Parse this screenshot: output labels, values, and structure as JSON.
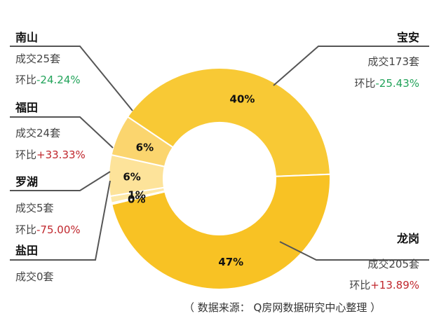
{
  "chart_data": {
    "type": "pie",
    "style": "donut",
    "slices": [
      {
        "label": "宝安",
        "value": 40,
        "display": "40%",
        "color": "#f8c935"
      },
      {
        "label": "龙岗",
        "value": 47,
        "display": "47%",
        "color": "#f8c224"
      },
      {
        "label": "盐田",
        "value": 0.2,
        "display": "0%",
        "color": "#fbe9b0"
      },
      {
        "label": "罗湖",
        "value": 1,
        "display": "1%",
        "color": "#fde8a8"
      },
      {
        "label": "福田",
        "value": 6,
        "display": "6%",
        "color": "#fde39a"
      },
      {
        "label": "南山",
        "value": 6,
        "display": "6%",
        "color": "#fbd56e"
      }
    ]
  },
  "districts": {
    "nanshan": {
      "name": "南山",
      "deal": "成交25套",
      "ratio_prefix": "环比",
      "ratio": "-24.24%"
    },
    "futian": {
      "name": "福田",
      "deal": "成交24套",
      "ratio_prefix": "环比",
      "ratio": "+33.33%"
    },
    "luohu": {
      "name": "罗湖",
      "deal": "成交5套",
      "ratio_prefix": "环比",
      "ratio": "-75.00%"
    },
    "yantian": {
      "name": "盐田",
      "deal": "成交0套"
    },
    "baoan": {
      "name": "宝安",
      "deal": "成交173套",
      "ratio_prefix": "环比",
      "ratio": "-25.43%"
    },
    "longgang": {
      "name": "龙岗",
      "deal": "成交205套",
      "ratio_prefix": "环比",
      "ratio": "+13.89%"
    }
  },
  "source": "（ 数据来源： Q房网数据研究中心整理 ）"
}
